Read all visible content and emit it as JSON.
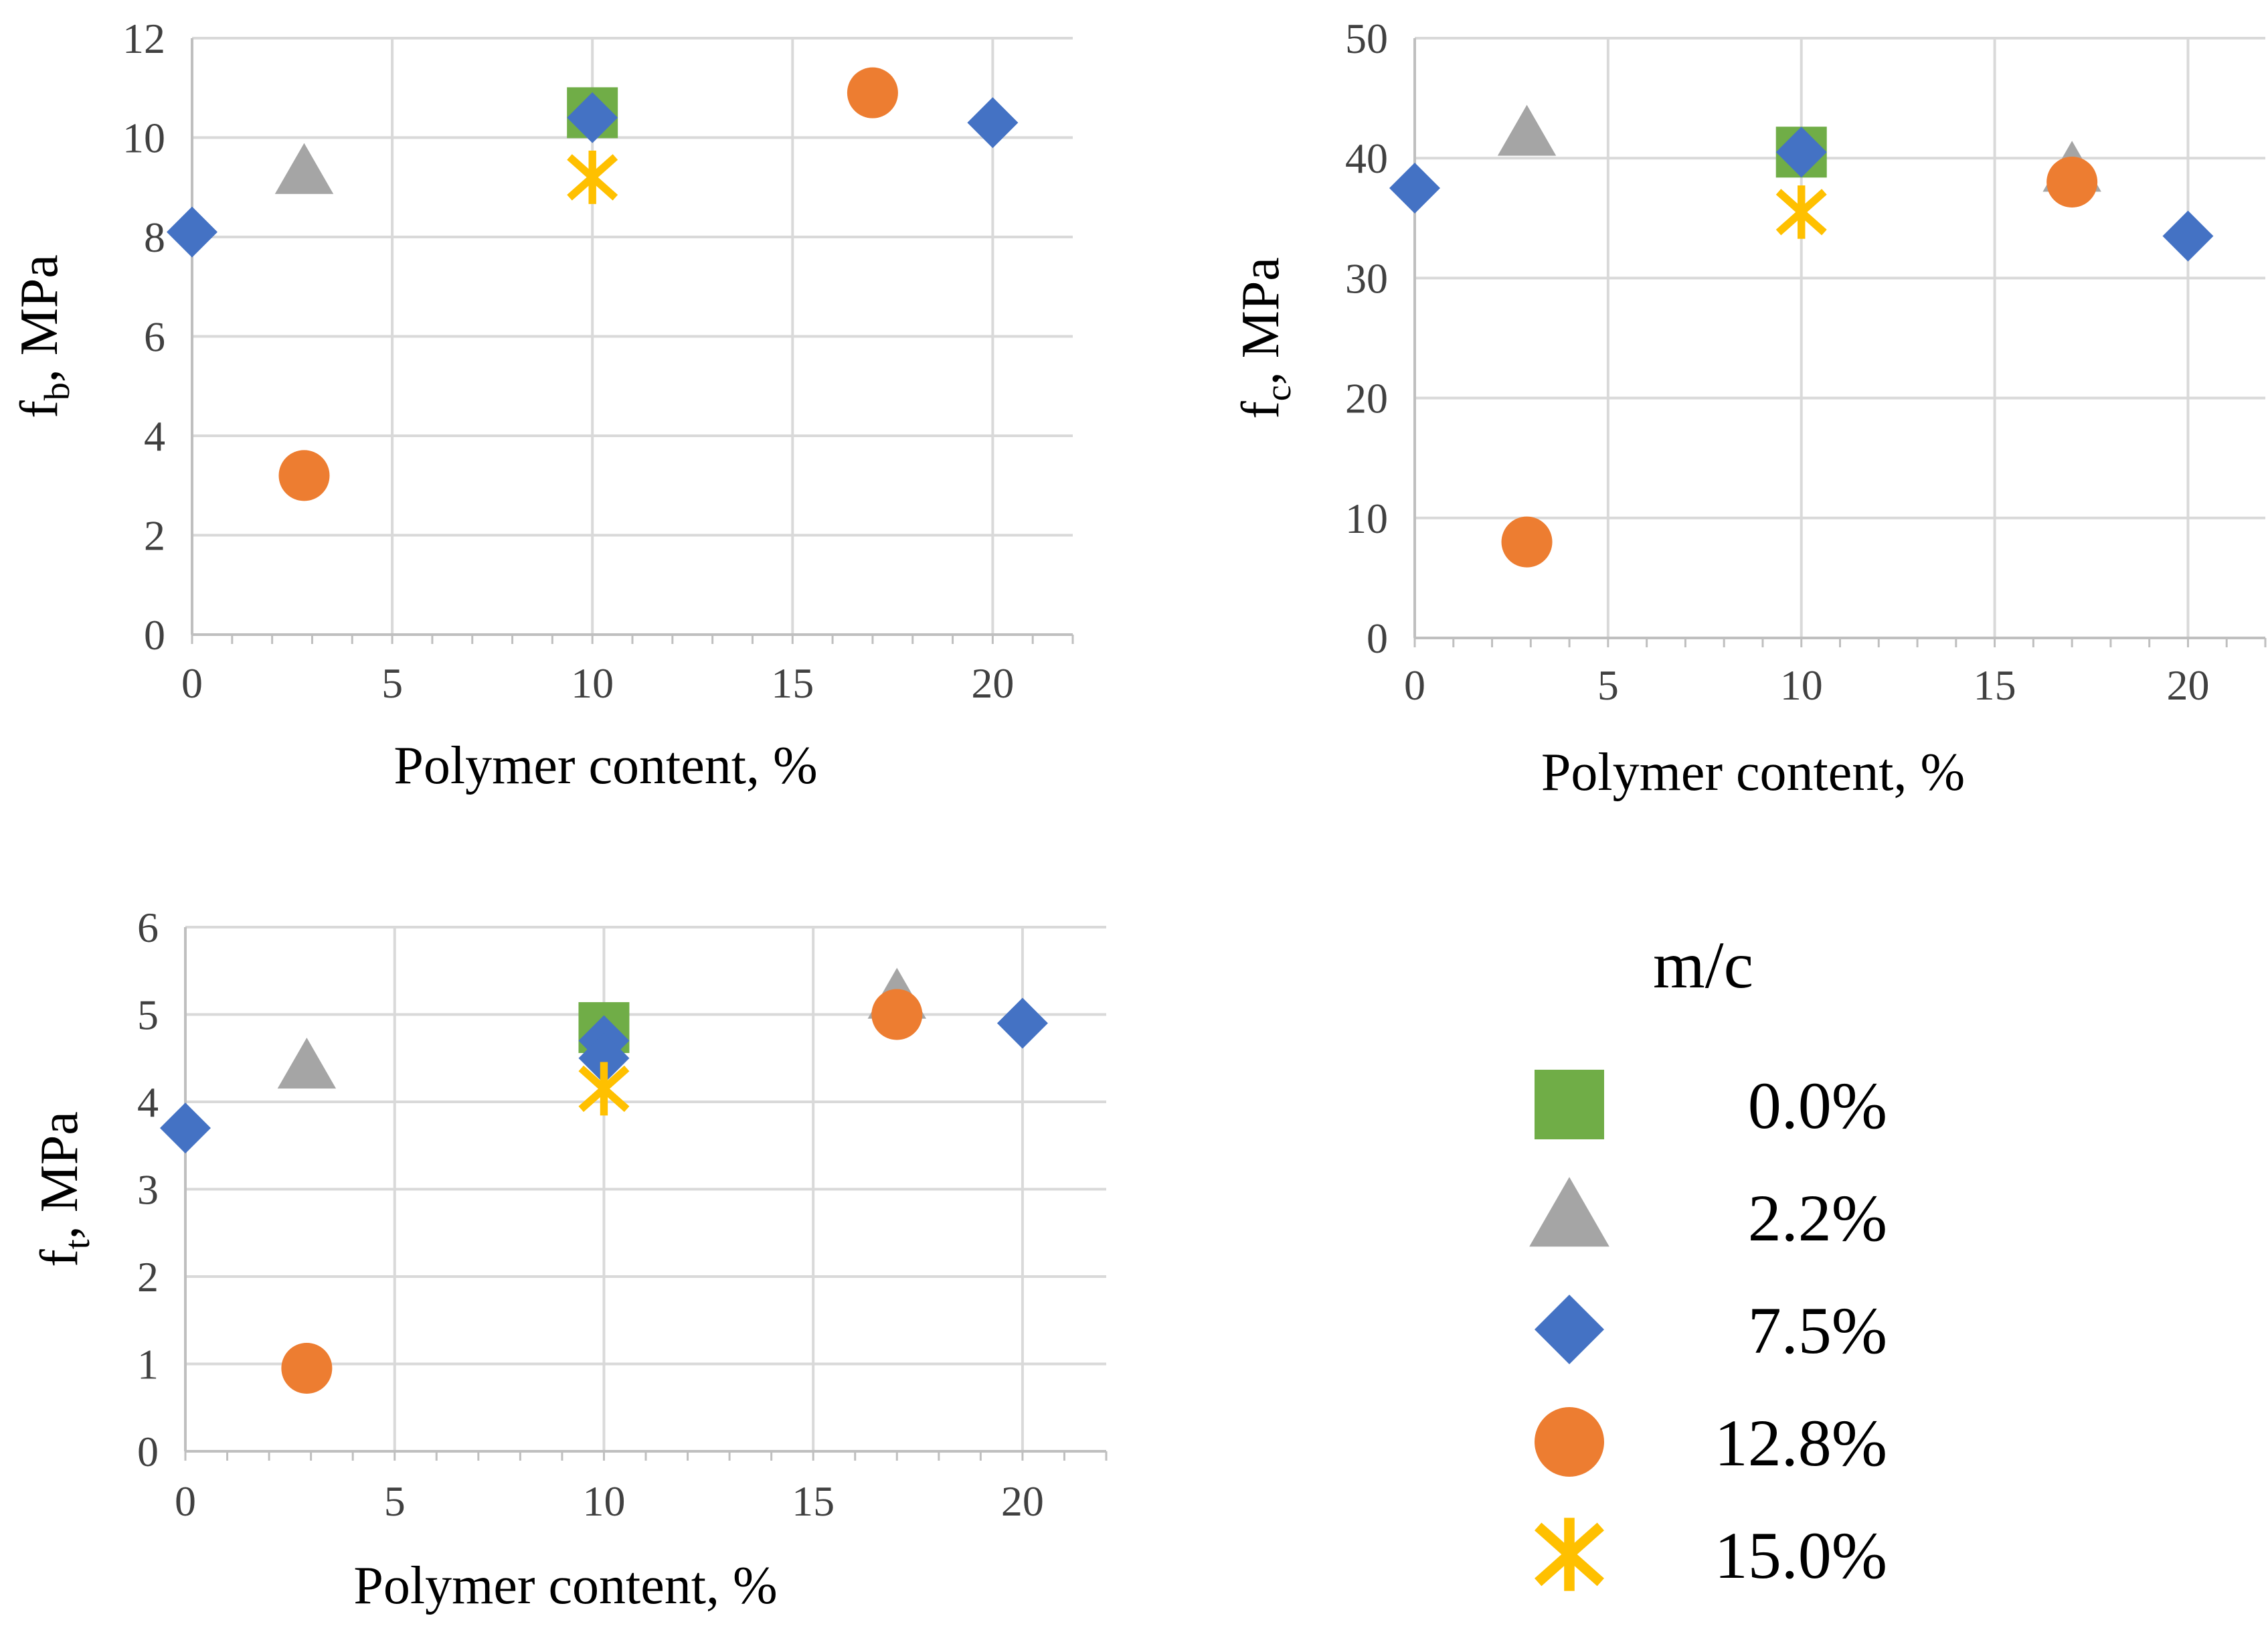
{
  "chart_data": [
    {
      "type": "scatter",
      "title": "",
      "xlabel": "Polymer content, %",
      "ylabel_main": "f",
      "ylabel_sub": "b",
      "ylabel_rest": ", MPa",
      "xlim": [
        0,
        22
      ],
      "ylim": [
        0,
        12
      ],
      "xticks": [
        0,
        5,
        10,
        15,
        20
      ],
      "yticks": [
        0,
        2,
        4,
        6,
        8,
        10,
        12
      ],
      "grid": true,
      "series": [
        {
          "name": "0.0%",
          "marker": "square",
          "color": "#70ad47",
          "points": [
            [
              10,
              10.5
            ]
          ]
        },
        {
          "name": "2.2%",
          "marker": "triangle",
          "color": "#a5a5a5",
          "points": [
            [
              2.8,
              9.3
            ]
          ]
        },
        {
          "name": "7.5%",
          "marker": "diamond",
          "color": "#4472c4",
          "points": [
            [
              0,
              8.1
            ],
            [
              10,
              10.4
            ],
            [
              20,
              10.3
            ]
          ]
        },
        {
          "name": "12.8%",
          "marker": "circle",
          "color": "#ed7d31",
          "points": [
            [
              2.8,
              3.2
            ],
            [
              17,
              10.9
            ]
          ]
        },
        {
          "name": "15.0%",
          "marker": "star",
          "color": "#ffc000",
          "points": [
            [
              10,
              9.2
            ]
          ]
        }
      ]
    },
    {
      "type": "scatter",
      "title": "",
      "xlabel": "Polymer content, %",
      "ylabel_main": "f",
      "ylabel_sub": "c",
      "ylabel_rest": ", MPa",
      "xlim": [
        0,
        22
      ],
      "ylim": [
        0,
        50
      ],
      "xticks": [
        0,
        5,
        10,
        15,
        20
      ],
      "yticks": [
        0,
        10,
        20,
        30,
        40,
        50
      ],
      "grid": true,
      "series": [
        {
          "name": "0.0%",
          "marker": "square",
          "color": "#70ad47",
          "points": [
            [
              10,
              40.5
            ]
          ]
        },
        {
          "name": "2.2%",
          "marker": "triangle",
          "color": "#a5a5a5",
          "points": [
            [
              2.9,
              42
            ],
            [
              17,
              39
            ]
          ]
        },
        {
          "name": "7.5%",
          "marker": "diamond",
          "color": "#4472c4",
          "points": [
            [
              0,
              37.5
            ],
            [
              10,
              40.5
            ],
            [
              20,
              33.5
            ]
          ]
        },
        {
          "name": "12.8%",
          "marker": "circle",
          "color": "#ed7d31",
          "points": [
            [
              2.9,
              8
            ],
            [
              17,
              38
            ]
          ]
        },
        {
          "name": "15.0%",
          "marker": "star",
          "color": "#ffc000",
          "points": [
            [
              10,
              35.5
            ]
          ]
        }
      ]
    },
    {
      "type": "scatter",
      "title": "",
      "xlabel": "Polymer content, %",
      "ylabel_main": "f",
      "ylabel_sub": "t",
      "ylabel_rest": ", MPa",
      "xlim": [
        0,
        22
      ],
      "ylim": [
        0,
        6
      ],
      "xticks": [
        0,
        5,
        10,
        15,
        20
      ],
      "yticks": [
        0,
        1,
        2,
        3,
        4,
        5,
        6
      ],
      "grid": true,
      "series": [
        {
          "name": "0.0%",
          "marker": "square",
          "color": "#70ad47",
          "points": [
            [
              10,
              4.85
            ]
          ]
        },
        {
          "name": "2.2%",
          "marker": "triangle",
          "color": "#a5a5a5",
          "points": [
            [
              2.9,
              4.4
            ],
            [
              17,
              5.2
            ]
          ]
        },
        {
          "name": "7.5%",
          "marker": "diamond",
          "color": "#4472c4",
          "points": [
            [
              0,
              3.7
            ],
            [
              10,
              4.7
            ],
            [
              10,
              4.5
            ],
            [
              20,
              4.9
            ]
          ]
        },
        {
          "name": "12.8%",
          "marker": "circle",
          "color": "#ed7d31",
          "points": [
            [
              2.9,
              0.95
            ],
            [
              17,
              5.0
            ]
          ]
        },
        {
          "name": "15.0%",
          "marker": "star",
          "color": "#ffc000",
          "points": [
            [
              10,
              4.15
            ]
          ]
        }
      ]
    }
  ],
  "legend": {
    "title": "m/c",
    "entries": [
      {
        "label": "0.0%",
        "marker": "square",
        "color": "#70ad47"
      },
      {
        "label": "2.2%",
        "marker": "triangle",
        "color": "#a5a5a5"
      },
      {
        "label": "7.5%",
        "marker": "diamond",
        "color": "#4472c4"
      },
      {
        "label": "12.8%",
        "marker": "circle",
        "color": "#ed7d31"
      },
      {
        "label": "15.0%",
        "marker": "star",
        "color": "#ffc000"
      }
    ]
  }
}
